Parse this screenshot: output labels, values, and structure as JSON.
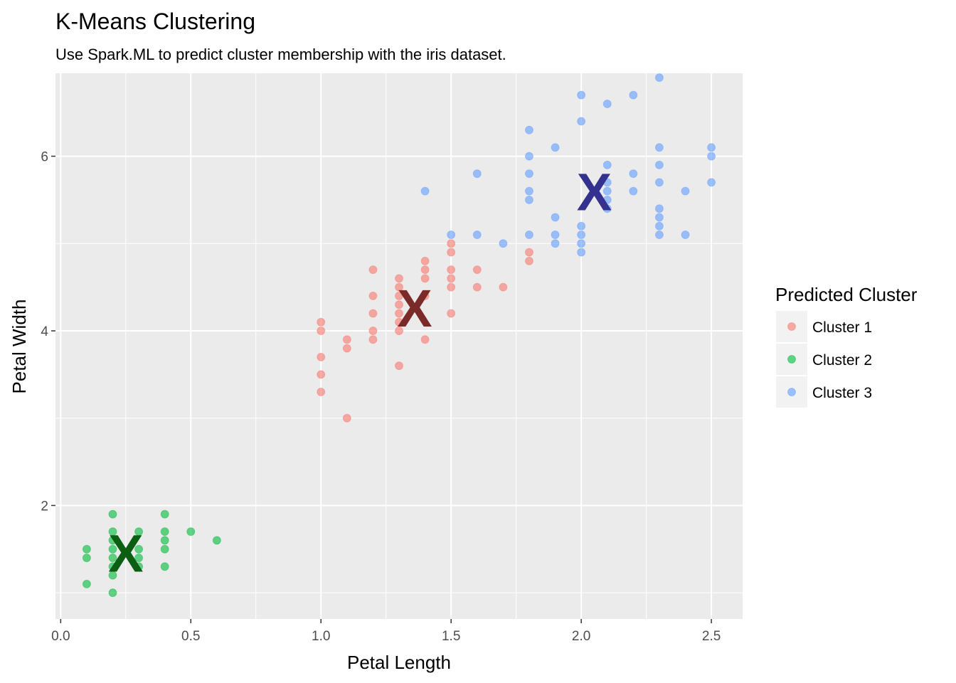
{
  "chart_data": {
    "type": "scatter",
    "title": "K-Means Clustering",
    "subtitle": "Use Spark.ML to predict cluster membership with the iris dataset.",
    "xlabel": "Petal Length",
    "ylabel": "Petal Width",
    "xlim": [
      -0.02,
      2.62
    ],
    "ylim": [
      0.7,
      6.95
    ],
    "x_ticks": [
      0.0,
      0.5,
      1.0,
      1.5,
      2.0,
      2.5
    ],
    "x_tick_labels": [
      "0.0",
      "0.5",
      "1.0",
      "1.5",
      "2.0",
      "2.5"
    ],
    "y_ticks": [
      2,
      4,
      6
    ],
    "y_tick_labels": [
      "2",
      "4",
      "6"
    ],
    "grid": true,
    "legend": {
      "title": "Predicted Cluster",
      "position": "right"
    },
    "centroid_marker": "X",
    "series": [
      {
        "name": "Cluster 1",
        "color": "#F8766D",
        "centroid_color": "#7B2A2A",
        "centroid": [
          1.36,
          4.27
        ],
        "points": [
          [
            1.0,
            4.1
          ],
          [
            1.0,
            4.0
          ],
          [
            1.0,
            3.7
          ],
          [
            1.0,
            3.5
          ],
          [
            1.0,
            3.3
          ],
          [
            1.1,
            3.9
          ],
          [
            1.1,
            3.8
          ],
          [
            1.1,
            3.0
          ],
          [
            1.2,
            4.7
          ],
          [
            1.2,
            4.4
          ],
          [
            1.2,
            4.2
          ],
          [
            1.2,
            4.0
          ],
          [
            1.2,
            3.9
          ],
          [
            1.3,
            4.6
          ],
          [
            1.3,
            4.5
          ],
          [
            1.3,
            4.4
          ],
          [
            1.3,
            4.3
          ],
          [
            1.3,
            4.2
          ],
          [
            1.3,
            4.1
          ],
          [
            1.3,
            4.0
          ],
          [
            1.3,
            3.6
          ],
          [
            1.4,
            4.8
          ],
          [
            1.4,
            4.7
          ],
          [
            1.4,
            4.6
          ],
          [
            1.4,
            4.4
          ],
          [
            1.4,
            3.9
          ],
          [
            1.5,
            5.0
          ],
          [
            1.5,
            4.9
          ],
          [
            1.5,
            4.7
          ],
          [
            1.5,
            4.6
          ],
          [
            1.5,
            4.5
          ],
          [
            1.5,
            4.2
          ],
          [
            1.6,
            4.7
          ],
          [
            1.6,
            4.5
          ],
          [
            1.7,
            4.5
          ],
          [
            1.8,
            4.9
          ],
          [
            1.8,
            4.8
          ]
        ]
      },
      {
        "name": "Cluster 2",
        "color": "#00BA38",
        "centroid_color": "#0B5E12",
        "centroid": [
          0.25,
          1.46
        ],
        "points": [
          [
            0.1,
            1.5
          ],
          [
            0.1,
            1.4
          ],
          [
            0.1,
            1.1
          ],
          [
            0.2,
            1.9
          ],
          [
            0.2,
            1.7
          ],
          [
            0.2,
            1.6
          ],
          [
            0.2,
            1.5
          ],
          [
            0.2,
            1.4
          ],
          [
            0.2,
            1.3
          ],
          [
            0.2,
            1.2
          ],
          [
            0.2,
            1.0
          ],
          [
            0.3,
            1.7
          ],
          [
            0.3,
            1.5
          ],
          [
            0.3,
            1.4
          ],
          [
            0.3,
            1.3
          ],
          [
            0.4,
            1.9
          ],
          [
            0.4,
            1.7
          ],
          [
            0.4,
            1.6
          ],
          [
            0.4,
            1.5
          ],
          [
            0.4,
            1.3
          ],
          [
            0.5,
            1.7
          ],
          [
            0.6,
            1.6
          ]
        ]
      },
      {
        "name": "Cluster 3",
        "color": "#619CFF",
        "centroid_color": "#35318E",
        "centroid": [
          2.05,
          5.6
        ],
        "points": [
          [
            1.4,
            5.6
          ],
          [
            1.5,
            5.1
          ],
          [
            1.6,
            5.8
          ],
          [
            1.6,
            5.1
          ],
          [
            1.7,
            5.0
          ],
          [
            1.8,
            6.3
          ],
          [
            1.8,
            6.0
          ],
          [
            1.8,
            5.8
          ],
          [
            1.8,
            5.6
          ],
          [
            1.8,
            5.5
          ],
          [
            1.8,
            5.1
          ],
          [
            1.9,
            6.1
          ],
          [
            1.9,
            5.3
          ],
          [
            1.9,
            5.1
          ],
          [
            1.9,
            5.0
          ],
          [
            2.0,
            6.7
          ],
          [
            2.0,
            6.4
          ],
          [
            2.0,
            5.2
          ],
          [
            2.0,
            5.1
          ],
          [
            2.0,
            5.0
          ],
          [
            2.0,
            4.9
          ],
          [
            2.1,
            6.6
          ],
          [
            2.1,
            5.9
          ],
          [
            2.1,
            5.7
          ],
          [
            2.1,
            5.6
          ],
          [
            2.1,
            5.5
          ],
          [
            2.1,
            5.4
          ],
          [
            2.2,
            6.7
          ],
          [
            2.2,
            5.8
          ],
          [
            2.2,
            5.6
          ],
          [
            2.3,
            6.9
          ],
          [
            2.3,
            6.1
          ],
          [
            2.3,
            5.9
          ],
          [
            2.3,
            5.7
          ],
          [
            2.3,
            5.4
          ],
          [
            2.3,
            5.3
          ],
          [
            2.3,
            5.2
          ],
          [
            2.3,
            5.1
          ],
          [
            2.4,
            5.6
          ],
          [
            2.4,
            5.1
          ],
          [
            2.5,
            6.1
          ],
          [
            2.5,
            6.0
          ],
          [
            2.5,
            5.7
          ]
        ]
      }
    ],
    "colors": {
      "panel_background": "#EBEBEB",
      "grid": "#FFFFFF",
      "legend_key_background": "#F2F2F2"
    }
  }
}
